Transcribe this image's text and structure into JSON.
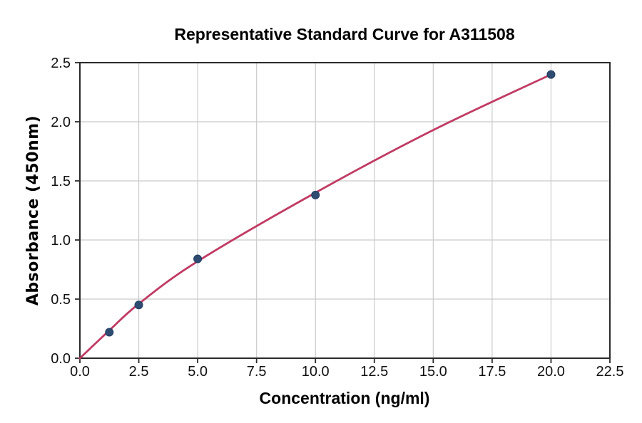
{
  "colors": {
    "curve": "#c03b63",
    "marker": "#2e4b72",
    "marker_edge": "#233f63",
    "grid": "#cbcbcb",
    "spine": "#2a2a2a",
    "text": "#000000",
    "background": "#ffffff"
  },
  "chart_data": {
    "type": "scatter",
    "title": "Representative Standard Curve for A311508",
    "xlabel": "Concentration (ng/ml)",
    "ylabel": "Absorbance (450nm)",
    "xlim": [
      0,
      22.5
    ],
    "ylim": [
      0,
      2.5
    ],
    "xticks": [
      0,
      2.5,
      5,
      7.5,
      10,
      12.5,
      15,
      17.5,
      20,
      22.5
    ],
    "xtick_labels": [
      "0.0",
      "2.5",
      "5.0",
      "7.5",
      "10.0",
      "12.5",
      "15.0",
      "17.5",
      "20.0",
      "22.5"
    ],
    "yticks": [
      0,
      0.5,
      1,
      1.5,
      2,
      2.5
    ],
    "ytick_labels": [
      "0.0",
      "0.5",
      "1.0",
      "1.5",
      "2.0",
      "2.5"
    ],
    "grid": true,
    "legend": false,
    "series": [
      {
        "name": "fitted-standard-curve",
        "type": "line",
        "x": [
          0,
          1.25,
          2.5,
          5,
          10,
          15,
          20
        ],
        "y": [
          0,
          0.235,
          0.46,
          0.82,
          1.4,
          1.93,
          2.4
        ]
      },
      {
        "name": "standard-points",
        "type": "scatter",
        "x": [
          1.25,
          2.5,
          5,
          10,
          20
        ],
        "y": [
          0.22,
          0.45,
          0.84,
          1.38,
          2.4
        ]
      }
    ]
  }
}
